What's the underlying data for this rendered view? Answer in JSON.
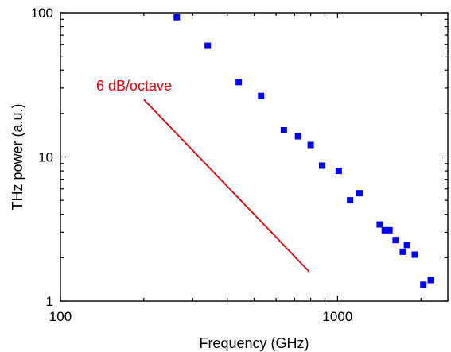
{
  "chart_data": {
    "type": "scatter",
    "xlabel": "Frequency (GHz)",
    "ylabel": "THz power (a.u.)",
    "xscale": "log",
    "yscale": "log",
    "xlim": [
      100,
      2500
    ],
    "ylim": [
      1,
      100
    ],
    "x_ticks": [
      {
        "value": 100,
        "label": "100"
      },
      {
        "value": 1000,
        "label": "1000"
      }
    ],
    "y_ticks": [
      {
        "value": 1,
        "label": "1"
      },
      {
        "value": 10,
        "label": "10"
      },
      {
        "value": 100,
        "label": "100"
      }
    ],
    "grid": false,
    "marker_color": "#0000ff",
    "series": [
      {
        "x": [
          263,
          340,
          440,
          530,
          640,
          720,
          800,
          880,
          1010,
          1110,
          1200,
          1420,
          1480,
          1540,
          1620,
          1720,
          1780,
          1900,
          2040,
          2170
        ],
        "y": [
          93,
          59,
          33,
          26.5,
          15.3,
          13.9,
          12.1,
          8.7,
          8.0,
          5.0,
          5.6,
          3.4,
          3.1,
          3.1,
          2.65,
          2.2,
          2.45,
          2.1,
          1.3,
          1.4
        ]
      }
    ],
    "annotations": [
      {
        "text": "6 dB/octave",
        "color": "#e8000b",
        "line": {
          "x": [
            200,
            790
          ],
          "y": [
            25,
            1.6
          ]
        }
      }
    ]
  }
}
